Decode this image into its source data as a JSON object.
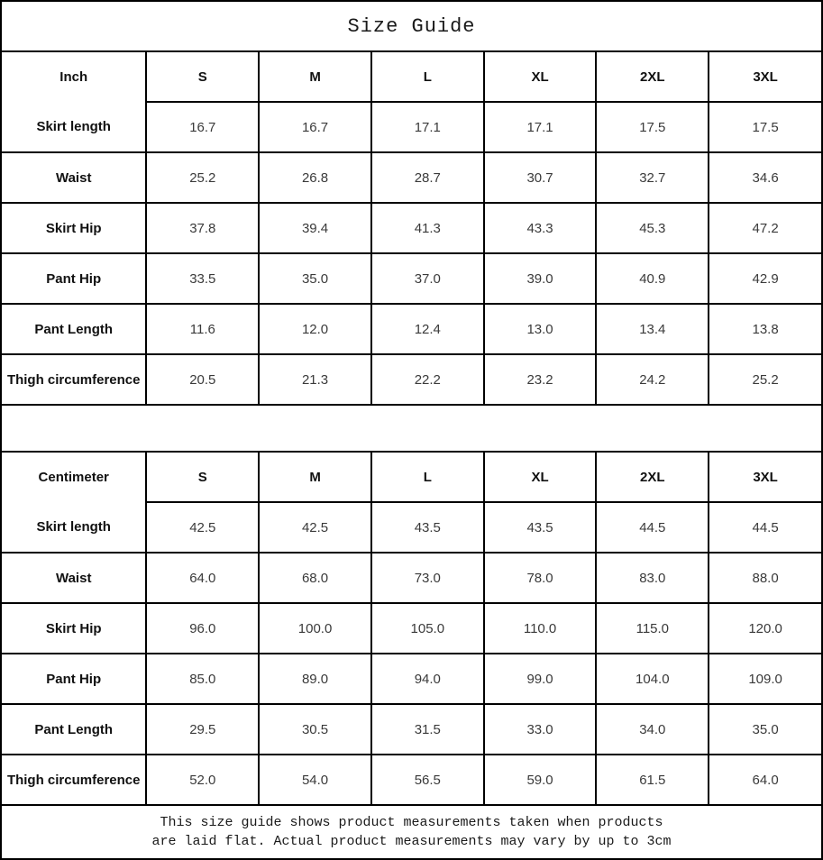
{
  "title": "Size Guide",
  "sizes": [
    "S",
    "M",
    "L",
    "XL",
    "2XL",
    "3XL"
  ],
  "tables": [
    {
      "unit_label": "Inch",
      "rows": [
        {
          "label": "Skirt length",
          "values": [
            "16.7",
            "16.7",
            "17.1",
            "17.1",
            "17.5",
            "17.5"
          ]
        },
        {
          "label": "Waist",
          "values": [
            "25.2",
            "26.8",
            "28.7",
            "30.7",
            "32.7",
            "34.6"
          ]
        },
        {
          "label": "Skirt Hip",
          "values": [
            "37.8",
            "39.4",
            "41.3",
            "43.3",
            "45.3",
            "47.2"
          ]
        },
        {
          "label": "Pant Hip",
          "values": [
            "33.5",
            "35.0",
            "37.0",
            "39.0",
            "40.9",
            "42.9"
          ]
        },
        {
          "label": "Pant Length",
          "values": [
            "11.6",
            "12.0",
            "12.4",
            "13.0",
            "13.4",
            "13.8"
          ]
        },
        {
          "label": "Thigh circumference",
          "values": [
            "20.5",
            "21.3",
            "22.2",
            "23.2",
            "24.2",
            "25.2"
          ]
        }
      ]
    },
    {
      "unit_label": "Centimeter",
      "rows": [
        {
          "label": "Skirt length",
          "values": [
            "42.5",
            "42.5",
            "43.5",
            "43.5",
            "44.5",
            "44.5"
          ]
        },
        {
          "label": "Waist",
          "values": [
            "64.0",
            "68.0",
            "73.0",
            "78.0",
            "83.0",
            "88.0"
          ]
        },
        {
          "label": "Skirt Hip",
          "values": [
            "96.0",
            "100.0",
            "105.0",
            "110.0",
            "115.0",
            "120.0"
          ]
        },
        {
          "label": "Pant Hip",
          "values": [
            "85.0",
            "89.0",
            "94.0",
            "99.0",
            "104.0",
            "109.0"
          ]
        },
        {
          "label": "Pant Length",
          "values": [
            "29.5",
            "30.5",
            "31.5",
            "33.0",
            "34.0",
            "35.0"
          ]
        },
        {
          "label": "Thigh circumference",
          "values": [
            "52.0",
            "54.0",
            "56.5",
            "59.0",
            "61.5",
            "64.0"
          ]
        }
      ]
    }
  ],
  "footer": {
    "line1": "This size guide shows product measurements taken when products",
    "line2": "are laid flat. Actual product measurements may vary by up to 3cm"
  },
  "colors": {
    "border": "#000000",
    "label_text": "#111111",
    "value_text": "#3a3a3a",
    "background": "#ffffff"
  }
}
